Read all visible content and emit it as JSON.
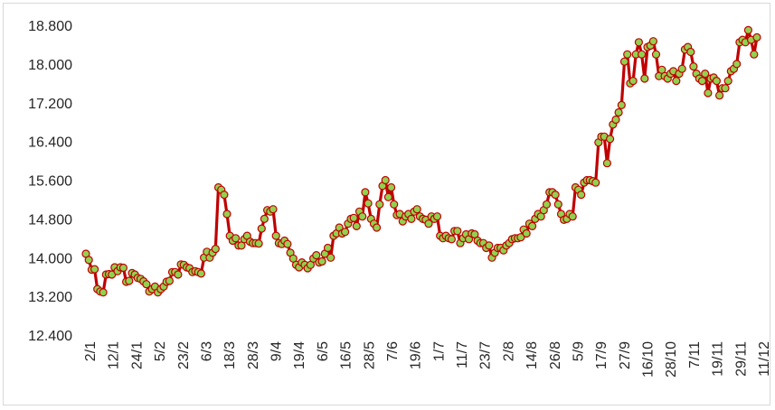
{
  "chart_data": {
    "type": "line",
    "title": "",
    "xlabel": "",
    "ylabel": "",
    "ylim": [
      12400,
      18800
    ],
    "grid": "none",
    "legend": "none",
    "line_color": "#c00000",
    "marker_fill": "#92d050",
    "marker_stroke": "#c00000",
    "y_ticks": [
      {
        "value": 12400,
        "label": "12.400"
      },
      {
        "value": 13200,
        "label": "13.200"
      },
      {
        "value": 14000,
        "label": "14.000"
      },
      {
        "value": 14800,
        "label": "14.800"
      },
      {
        "value": 15600,
        "label": "15.600"
      },
      {
        "value": 16400,
        "label": "16.400"
      },
      {
        "value": 17200,
        "label": "17.200"
      },
      {
        "value": 18000,
        "label": "18.000"
      },
      {
        "value": 18800,
        "label": "18.800"
      }
    ],
    "x_tick_labels": [
      "2/1",
      "12/1",
      "24/1",
      "5/2",
      "23/2",
      "6/3",
      "18/3",
      "28/3",
      "9/4",
      "19/4",
      "6/5",
      "16/5",
      "28/5",
      "7/6",
      "19/6",
      "1/7",
      "11/7",
      "23/7",
      "2/8",
      "14/8",
      "26/8",
      "5/9",
      "17/9",
      "27/9",
      "16/10",
      "28/10",
      "7/11",
      "19/11",
      "29/11",
      "11/12"
    ],
    "series": [
      {
        "values": [
          14080,
          13950,
          13750,
          13760,
          13350,
          13300,
          13280,
          13650,
          13660,
          13650,
          13800,
          13720,
          13800,
          13790,
          13500,
          13520,
          13680,
          13650,
          13580,
          13560,
          13510,
          13450,
          13300,
          13350,
          13400,
          13280,
          13350,
          13400,
          13500,
          13520,
          13700,
          13700,
          13650,
          13860,
          13850,
          13800,
          13780,
          13700,
          13720,
          13700,
          13670,
          14000,
          14120,
          14000,
          14100,
          14180,
          15450,
          15400,
          15300,
          14900,
          14450,
          14350,
          14400,
          14250,
          14250,
          14380,
          14450,
          14330,
          14300,
          14300,
          14290,
          14600,
          14800,
          14980,
          14950,
          15000,
          14450,
          14300,
          14280,
          14350,
          14280,
          14100,
          13980,
          13850,
          13800,
          13900,
          13850,
          13780,
          13850,
          13980,
          14050,
          13900,
          13920,
          14080,
          14200,
          14000,
          14450,
          14500,
          14620,
          14500,
          14530,
          14700,
          14800,
          14820,
          14650,
          14950,
          14850,
          15350,
          15120,
          14800,
          14700,
          14620,
          15100,
          15480,
          15600,
          15250,
          15450,
          15100,
          14880,
          14900,
          14750,
          14850,
          14900,
          14800,
          14950,
          15000,
          14850,
          14800,
          14780,
          14700,
          14850,
          14800,
          14850,
          14450,
          14400,
          14450,
          14400,
          14380,
          14550,
          14550,
          14300,
          14400,
          14480,
          14380,
          14500,
          14480,
          14350,
          14300,
          14300,
          14200,
          14250,
          14000,
          14100,
          14200,
          14200,
          14150,
          14250,
          14300,
          14380,
          14400,
          14400,
          14420,
          14580,
          14500,
          14700,
          14650,
          14800,
          14900,
          14850,
          14980,
          15100,
          15350,
          15350,
          15300,
          15100,
          14900,
          14780,
          14800,
          14900,
          14850,
          15450,
          15400,
          15300,
          15550,
          15600,
          15600,
          15580,
          15550,
          16380,
          16500,
          16500,
          15950,
          16450,
          16750,
          16850,
          17000,
          17150,
          18050,
          18200,
          17600,
          17650,
          18200,
          18450,
          18200,
          17700,
          18350,
          18380,
          18470,
          18200,
          17750,
          17880,
          17750,
          17700,
          17800,
          17850,
          17650,
          17800,
          17900,
          18300,
          18350,
          18250,
          17950,
          17800,
          17700,
          17650,
          17800,
          17400,
          17700,
          17720,
          17650,
          17350,
          17500,
          17500,
          17650,
          17850,
          17900,
          18000,
          18450,
          18500,
          18450,
          18700,
          18500,
          18200,
          18550
        ]
      }
    ]
  }
}
